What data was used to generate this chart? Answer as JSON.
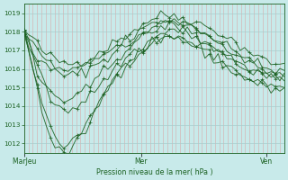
{
  "title": "",
  "xlabel": "Pression niveau de la mer( hPa )",
  "ylabel": "",
  "bg_color": "#c8eaea",
  "grid_color_v": "#d8a8a8",
  "grid_color_h": "#a8cccc",
  "line_color": "#1a6020",
  "ylim": [
    1011.5,
    1019.5
  ],
  "yticks": [
    1012,
    1013,
    1014,
    1015,
    1016,
    1017,
    1018,
    1019
  ],
  "xtick_labels": [
    "Mar​Jeu",
    "Mer",
    "Ven"
  ],
  "xtick_pos": [
    0.0,
    0.45,
    0.93
  ],
  "num_vgrid": 60,
  "lines": [
    [
      1018.0,
      1017.85,
      1017.6,
      1017.3,
      1017.0,
      1016.8,
      1016.65,
      1016.5,
      1016.4,
      1016.35,
      1016.3,
      1016.3,
      1016.35,
      1016.4,
      1016.5,
      1016.6,
      1016.75,
      1016.9,
      1017.05,
      1017.2,
      1017.35,
      1017.5,
      1017.65,
      1017.8,
      1017.95,
      1018.1,
      1018.25,
      1018.4,
      1018.55,
      1018.7,
      1018.8,
      1018.85,
      1018.9,
      1018.9,
      1018.85,
      1018.8,
      1018.75,
      1018.7,
      1018.6,
      1018.5,
      1018.4,
      1018.3,
      1018.2,
      1018.1,
      1018.0,
      1017.85,
      1017.7,
      1017.55,
      1017.4,
      1017.25,
      1017.1,
      1016.95,
      1016.8,
      1016.65,
      1016.5,
      1016.4,
      1016.35,
      1016.3,
      1016.2,
      1016.15
    ],
    [
      1018.0,
      1017.5,
      1017.0,
      1016.6,
      1016.3,
      1016.1,
      1015.95,
      1015.85,
      1015.75,
      1015.7,
      1015.65,
      1015.65,
      1015.7,
      1015.8,
      1015.9,
      1016.05,
      1016.2,
      1016.35,
      1016.5,
      1016.65,
      1016.8,
      1016.95,
      1017.1,
      1017.25,
      1017.4,
      1017.55,
      1017.7,
      1017.85,
      1018.0,
      1018.15,
      1018.3,
      1018.45,
      1018.6,
      1018.65,
      1018.6,
      1018.55,
      1018.5,
      1018.45,
      1018.35,
      1018.25,
      1018.1,
      1017.95,
      1017.8,
      1017.65,
      1017.5,
      1017.35,
      1017.2,
      1017.05,
      1016.9,
      1016.75,
      1016.6,
      1016.45,
      1016.3,
      1016.2,
      1016.1,
      1016.0,
      1015.95,
      1015.9,
      1015.85,
      1015.8
    ],
    [
      1018.0,
      1017.3,
      1016.5,
      1015.8,
      1015.2,
      1014.75,
      1014.4,
      1014.15,
      1014.0,
      1013.9,
      1013.85,
      1013.9,
      1014.0,
      1014.15,
      1014.35,
      1014.6,
      1014.85,
      1015.1,
      1015.35,
      1015.6,
      1015.85,
      1016.1,
      1016.35,
      1016.55,
      1016.75,
      1016.95,
      1017.1,
      1017.25,
      1017.4,
      1017.55,
      1017.7,
      1017.85,
      1018.0,
      1018.1,
      1018.1,
      1018.05,
      1018.0,
      1017.9,
      1017.8,
      1017.65,
      1017.5,
      1017.35,
      1017.2,
      1017.05,
      1016.9,
      1016.75,
      1016.6,
      1016.45,
      1016.3,
      1016.2,
      1016.1,
      1016.0,
      1015.95,
      1015.85,
      1015.75,
      1015.65,
      1015.55,
      1015.45,
      1015.4,
      1015.35
    ],
    [
      1018.0,
      1017.1,
      1016.1,
      1015.1,
      1014.2,
      1013.45,
      1012.85,
      1012.4,
      1012.1,
      1011.95,
      1012.0,
      1012.15,
      1012.4,
      1012.7,
      1013.05,
      1013.45,
      1013.85,
      1014.25,
      1014.65,
      1015.0,
      1015.35,
      1015.65,
      1015.9,
      1016.15,
      1016.35,
      1016.55,
      1016.7,
      1016.85,
      1017.0,
      1017.15,
      1017.3,
      1017.45,
      1017.6,
      1017.65,
      1017.65,
      1017.6,
      1017.55,
      1017.45,
      1017.3,
      1017.15,
      1017.0,
      1016.85,
      1016.7,
      1016.55,
      1016.4,
      1016.25,
      1016.1,
      1015.95,
      1015.8,
      1015.65,
      1015.5,
      1015.4,
      1015.3,
      1015.2,
      1015.1,
      1015.05,
      1015.0,
      1014.95,
      1014.9,
      1014.85
    ],
    [
      1018.0,
      1017.05,
      1015.95,
      1014.85,
      1013.85,
      1013.0,
      1012.35,
      1011.85,
      1011.55,
      1011.45,
      1011.5,
      1011.7,
      1012.0,
      1012.35,
      1012.75,
      1013.2,
      1013.65,
      1014.1,
      1014.55,
      1014.95,
      1015.35,
      1015.7,
      1016.0,
      1016.25,
      1016.5,
      1016.7,
      1016.88,
      1017.05,
      1017.2,
      1017.35,
      1017.5,
      1017.6,
      1017.7,
      1017.75,
      1017.75,
      1017.7,
      1017.65,
      1017.55,
      1017.4,
      1017.25,
      1017.1,
      1016.95,
      1016.8,
      1016.65,
      1016.5,
      1016.35,
      1016.2,
      1016.05,
      1015.9,
      1015.75,
      1015.6,
      1015.5,
      1015.4,
      1015.3,
      1015.2,
      1015.12,
      1015.05,
      1015.0,
      1014.95,
      1014.9
    ],
    [
      1018.0,
      1017.7,
      1017.35,
      1017.0,
      1016.7,
      1016.45,
      1016.25,
      1016.1,
      1016.0,
      1015.95,
      1015.9,
      1015.9,
      1015.95,
      1016.05,
      1016.15,
      1016.3,
      1016.45,
      1016.6,
      1016.75,
      1016.9,
      1017.05,
      1017.2,
      1017.35,
      1017.5,
      1017.65,
      1017.8,
      1017.95,
      1018.1,
      1018.25,
      1018.4,
      1018.5,
      1018.55,
      1018.6,
      1018.6,
      1018.55,
      1018.5,
      1018.45,
      1018.4,
      1018.3,
      1018.2,
      1018.05,
      1017.9,
      1017.75,
      1017.6,
      1017.45,
      1017.3,
      1017.15,
      1017.0,
      1016.85,
      1016.7,
      1016.55,
      1016.4,
      1016.25,
      1016.1,
      1016.0,
      1015.9,
      1015.85,
      1015.8,
      1015.75,
      1015.7
    ],
    [
      1018.0,
      1017.4,
      1016.75,
      1016.15,
      1015.6,
      1015.15,
      1014.8,
      1014.55,
      1014.4,
      1014.3,
      1014.3,
      1014.35,
      1014.5,
      1014.65,
      1014.85,
      1015.1,
      1015.35,
      1015.6,
      1015.85,
      1016.1,
      1016.35,
      1016.6,
      1016.8,
      1017.0,
      1017.2,
      1017.4,
      1017.55,
      1017.7,
      1017.85,
      1018.0,
      1018.15,
      1018.25,
      1018.3,
      1018.3,
      1018.25,
      1018.2,
      1018.15,
      1018.05,
      1017.9,
      1017.75,
      1017.6,
      1017.45,
      1017.3,
      1017.15,
      1017.0,
      1016.85,
      1016.7,
      1016.55,
      1016.4,
      1016.25,
      1016.1,
      1016.0,
      1015.9,
      1015.8,
      1015.7,
      1015.6,
      1015.52,
      1015.45,
      1015.4,
      1015.35
    ]
  ],
  "noise_seed": 42,
  "noise_scale": 0.15
}
